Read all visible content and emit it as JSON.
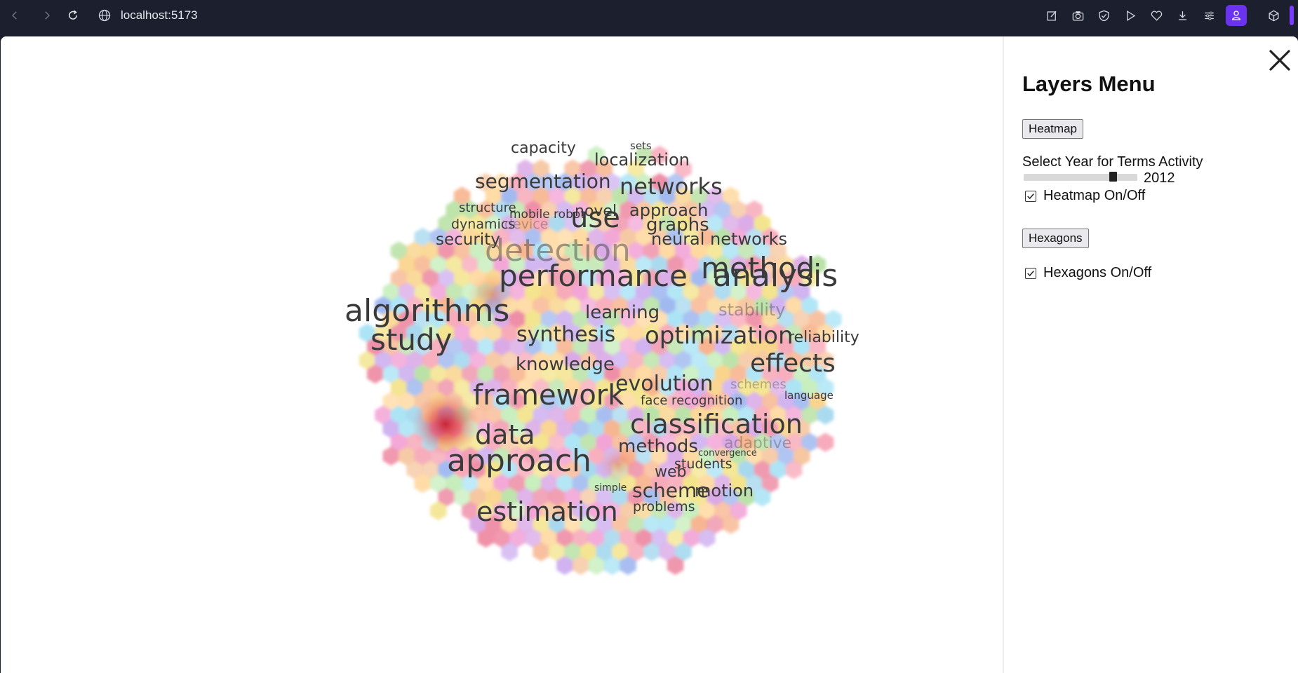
{
  "browser": {
    "url": "localhost:5173",
    "icons": [
      "back-icon",
      "forward-icon",
      "reload-icon",
      "globe-icon",
      "edit-icon",
      "camera-icon",
      "shield-icon",
      "play-icon",
      "heart-icon",
      "download-icon",
      "menu-icon",
      "profile-icon",
      "extensions-icon"
    ]
  },
  "panel": {
    "title": "Layers Menu",
    "heatmap_button": "Heatmap",
    "year_label": "Select Year for Terms Activity",
    "year_value": "2012",
    "year_slider_fraction": 0.81,
    "heatmap_toggle_label": "Heatmap On/Off",
    "heatmap_checked": true,
    "hexagons_button": "Hexagons",
    "hexagons_toggle_label": "Hexagons On/Off",
    "hexagons_checked": true
  },
  "wordcloud": {
    "terms": [
      "capacity",
      "sets",
      "localization",
      "segmentation",
      "networks",
      "structure",
      "novel",
      "approach",
      "mobile robot",
      "use",
      "dynamics",
      "device",
      "graphs",
      "security",
      "neural networks",
      "detection",
      "performance",
      "method",
      "analysis",
      "algorithms",
      "learning",
      "stability",
      "study",
      "synthesis",
      "optimization",
      "reliability",
      "knowledge",
      "effects",
      "evolution",
      "schemes",
      "framework",
      "language",
      "face recognition",
      "classification",
      "data",
      "adaptive",
      "methods",
      "convergence",
      "approach",
      "students",
      "web",
      "simple",
      "scheme",
      "motion",
      "estimation",
      "problems"
    ]
  },
  "colors": {
    "chrome_bg": "#1b1f2e",
    "profile_accent": "#6b33f0",
    "heatmap_hotspot": "#d62b3a"
  }
}
